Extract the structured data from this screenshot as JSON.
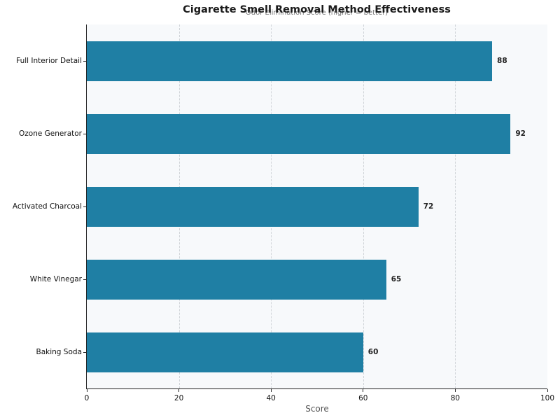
{
  "chart_data": {
    "type": "bar",
    "orientation": "horizontal",
    "title": "Cigarette Smell Removal Method Effectiveness",
    "subtitle": "Odor Elimination Score (higher = better)",
    "xlabel": "Score",
    "ylabel": "",
    "xlim": [
      0,
      100
    ],
    "xticks": [
      "0",
      "20",
      "40",
      "60",
      "80",
      "100"
    ],
    "categories": [
      "Full Interior Detail",
      "Ozone Generator",
      "Activated Charcoal",
      "White Vinegar",
      "Baking Soda"
    ],
    "values": [
      88,
      92,
      72,
      65,
      60
    ],
    "value_labels": [
      "88",
      "92",
      "72",
      "65",
      "60"
    ],
    "grid": "x-dashed",
    "legend": null,
    "bar_color": "#1f7fa4",
    "background": "#f7f9fb"
  }
}
